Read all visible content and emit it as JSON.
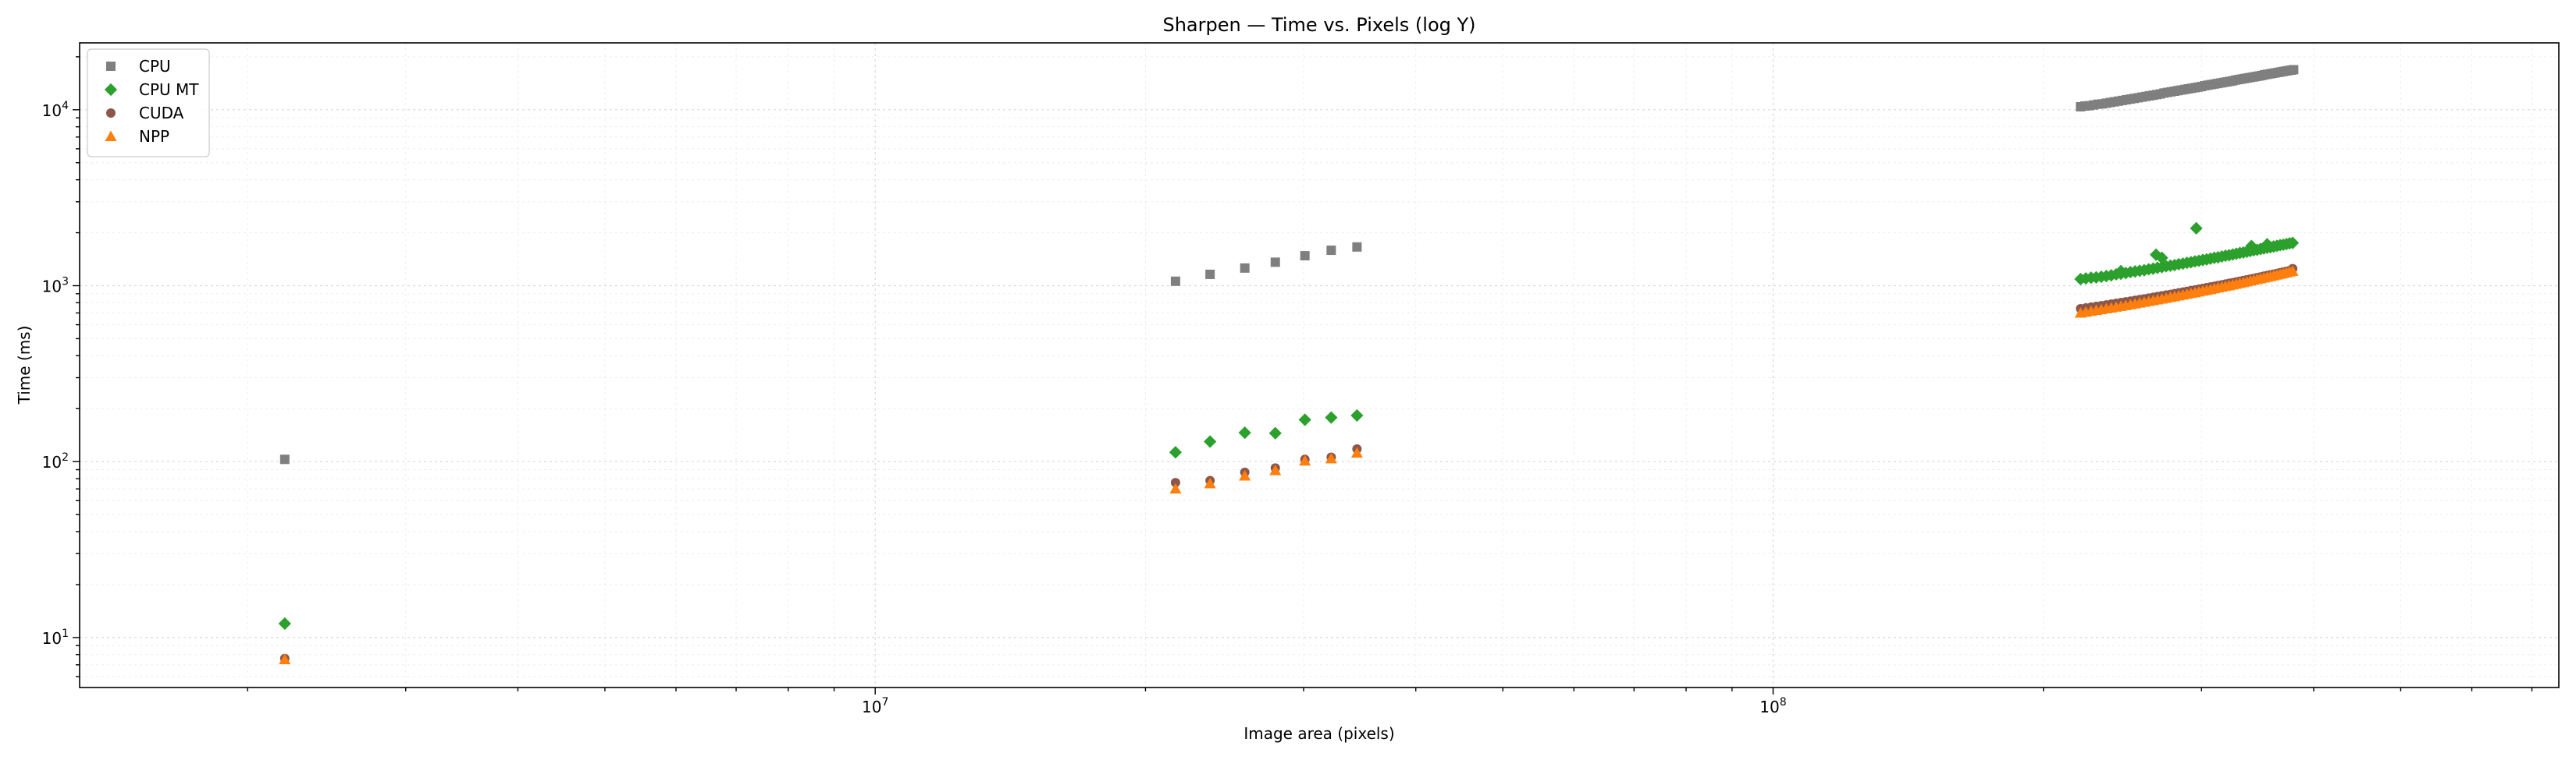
{
  "chart_data": {
    "type": "scatter",
    "title": "Sharpen — Time vs. Pixels (log Y)",
    "xlabel": "Image area (pixels)",
    "ylabel": "Time (ms)",
    "xscale": "log",
    "yscale": "log",
    "xlim": [
      1300000,
      750000000
    ],
    "ylim": [
      5.2,
      24000
    ],
    "grid": true,
    "legend_placement": "upper-left",
    "x_tick_labels": [
      {
        "value": 10000000,
        "base": "10",
        "exp": "7"
      },
      {
        "value": 100000000,
        "base": "10",
        "exp": "8"
      }
    ],
    "y_tick_labels": [
      {
        "value": 10,
        "base": "10",
        "exp": "1"
      },
      {
        "value": 100,
        "base": "10",
        "exp": "2"
      },
      {
        "value": 1000,
        "base": "10",
        "exp": "3"
      },
      {
        "value": 10000,
        "base": "10",
        "exp": "4"
      }
    ],
    "series": [
      {
        "name": "CPU",
        "marker": "square",
        "color": "#7f7f7f",
        "points": [
          [
            2200000,
            103
          ],
          [
            21600000,
            1060
          ],
          [
            23600000,
            1160
          ],
          [
            25800000,
            1260
          ],
          [
            27900000,
            1360
          ],
          [
            30100000,
            1480
          ],
          [
            32200000,
            1590
          ],
          [
            34400000,
            1660
          ],
          [
            220000000,
            10400
          ],
          [
            222500000,
            10500
          ],
          [
            225000000,
            10550
          ],
          [
            227500000,
            10650
          ],
          [
            230000000,
            10750
          ],
          [
            232500000,
            10800
          ],
          [
            235000000,
            10900
          ],
          [
            237500000,
            11000
          ],
          [
            240000000,
            11100
          ],
          [
            242500000,
            11200
          ],
          [
            245000000,
            11300
          ],
          [
            247500000,
            11400
          ],
          [
            250000000,
            11500
          ],
          [
            252500000,
            11600
          ],
          [
            255000000,
            11700
          ],
          [
            257500000,
            11800
          ],
          [
            260000000,
            11900
          ],
          [
            262500000,
            12000
          ],
          [
            265000000,
            12100
          ],
          [
            267500000,
            12200
          ],
          [
            270000000,
            12300
          ],
          [
            272500000,
            12450
          ],
          [
            275000000,
            12550
          ],
          [
            277500000,
            12650
          ],
          [
            280000000,
            12750
          ],
          [
            282500000,
            12850
          ],
          [
            285000000,
            12950
          ],
          [
            287500000,
            13050
          ],
          [
            290000000,
            13150
          ],
          [
            292500000,
            13250
          ],
          [
            295000000,
            13350
          ],
          [
            297500000,
            13450
          ],
          [
            300000000,
            13550
          ],
          [
            302500000,
            13700
          ],
          [
            305000000,
            13800
          ],
          [
            307500000,
            13900
          ],
          [
            310000000,
            14000
          ],
          [
            312500000,
            14100
          ],
          [
            315000000,
            14200
          ],
          [
            317500000,
            14300
          ],
          [
            320000000,
            14400
          ],
          [
            322500000,
            14500
          ],
          [
            325000000,
            14600
          ],
          [
            327500000,
            14750
          ],
          [
            330000000,
            14850
          ],
          [
            332500000,
            14950
          ],
          [
            335000000,
            15050
          ],
          [
            337500000,
            15150
          ],
          [
            340000000,
            15250
          ],
          [
            342500000,
            15350
          ],
          [
            345000000,
            15450
          ],
          [
            347500000,
            15550
          ],
          [
            350000000,
            15650
          ],
          [
            352500000,
            15800
          ],
          [
            355000000,
            15900
          ],
          [
            357500000,
            16000
          ],
          [
            360000000,
            16100
          ],
          [
            362500000,
            16200
          ],
          [
            365000000,
            16300
          ],
          [
            367500000,
            16400
          ],
          [
            370000000,
            16500
          ],
          [
            372500000,
            16600
          ],
          [
            375000000,
            16700
          ],
          [
            377500000,
            16800
          ],
          [
            380000000,
            16900
          ]
        ]
      },
      {
        "name": "CPU MT",
        "marker": "diamond",
        "color": "#2ca02c",
        "points": [
          [
            2200000,
            12
          ],
          [
            21600000,
            113
          ],
          [
            23600000,
            130
          ],
          [
            25800000,
            146
          ],
          [
            27900000,
            145
          ],
          [
            30100000,
            173
          ],
          [
            32200000,
            178
          ],
          [
            34400000,
            183
          ],
          [
            220000000,
            1090
          ],
          [
            223000000,
            1100
          ],
          [
            226000000,
            1110
          ],
          [
            229000000,
            1115
          ],
          [
            232000000,
            1125
          ],
          [
            235000000,
            1135
          ],
          [
            238000000,
            1145
          ],
          [
            241000000,
            1160
          ],
          [
            244000000,
            1170
          ],
          [
            247000000,
            1180
          ],
          [
            250000000,
            1195
          ],
          [
            253000000,
            1205
          ],
          [
            256000000,
            1215
          ],
          [
            259000000,
            1225
          ],
          [
            262000000,
            1240
          ],
          [
            265000000,
            1250
          ],
          [
            268000000,
            1265
          ],
          [
            271000000,
            1275
          ],
          [
            274000000,
            1290
          ],
          [
            277000000,
            1300
          ],
          [
            280000000,
            1310
          ],
          [
            283000000,
            1325
          ],
          [
            286000000,
            1335
          ],
          [
            289000000,
            1350
          ],
          [
            292000000,
            1360
          ],
          [
            295000000,
            1375
          ],
          [
            298000000,
            1385
          ],
          [
            301000000,
            1400
          ],
          [
            304000000,
            1410
          ],
          [
            307000000,
            1425
          ],
          [
            310000000,
            1440
          ],
          [
            313000000,
            1450
          ],
          [
            316000000,
            1465
          ],
          [
            319000000,
            1480
          ],
          [
            322000000,
            1490
          ],
          [
            325000000,
            1505
          ],
          [
            328000000,
            1520
          ],
          [
            331000000,
            1535
          ],
          [
            334000000,
            1545
          ],
          [
            337000000,
            1560
          ],
          [
            340000000,
            1575
          ],
          [
            343000000,
            1590
          ],
          [
            346000000,
            1600
          ],
          [
            349000000,
            1615
          ],
          [
            352000000,
            1630
          ],
          [
            355000000,
            1645
          ],
          [
            358000000,
            1655
          ],
          [
            361000000,
            1670
          ],
          [
            364000000,
            1685
          ],
          [
            367000000,
            1700
          ],
          [
            370000000,
            1710
          ],
          [
            373000000,
            1725
          ],
          [
            376000000,
            1740
          ],
          [
            379000000,
            1750
          ],
          [
            267000000,
            1500
          ],
          [
            271000000,
            1440
          ],
          [
            296000000,
            2120
          ],
          [
            341000000,
            1680
          ],
          [
            355000000,
            1720
          ],
          [
            244000000,
            1210
          ]
        ]
      },
      {
        "name": "CUDA",
        "marker": "circle",
        "color": "#8c564b",
        "points": [
          [
            2200000,
            7.6
          ],
          [
            21600000,
            76
          ],
          [
            23600000,
            78
          ],
          [
            25800000,
            87
          ],
          [
            27900000,
            92
          ],
          [
            30100000,
            103
          ],
          [
            32200000,
            106
          ],
          [
            34400000,
            118
          ],
          [
            220000000,
            740
          ],
          [
            223000000,
            748
          ],
          [
            226000000,
            755
          ],
          [
            229000000,
            763
          ],
          [
            232000000,
            770
          ],
          [
            235000000,
            778
          ],
          [
            238000000,
            786
          ],
          [
            241000000,
            794
          ],
          [
            244000000,
            802
          ],
          [
            247000000,
            810
          ],
          [
            250000000,
            818
          ],
          [
            253000000,
            826
          ],
          [
            256000000,
            834
          ],
          [
            259000000,
            842
          ],
          [
            262000000,
            851
          ],
          [
            265000000,
            859
          ],
          [
            268000000,
            868
          ],
          [
            271000000,
            876
          ],
          [
            274000000,
            885
          ],
          [
            277000000,
            893
          ],
          [
            280000000,
            902
          ],
          [
            283000000,
            911
          ],
          [
            286000000,
            920
          ],
          [
            289000000,
            929
          ],
          [
            292000000,
            938
          ],
          [
            295000000,
            947
          ],
          [
            298000000,
            956
          ],
          [
            301000000,
            965
          ],
          [
            304000000,
            975
          ],
          [
            307000000,
            984
          ],
          [
            310000000,
            993
          ],
          [
            313000000,
            1003
          ],
          [
            316000000,
            1012
          ],
          [
            319000000,
            1022
          ],
          [
            322000000,
            1032
          ],
          [
            325000000,
            1041
          ],
          [
            328000000,
            1051
          ],
          [
            331000000,
            1061
          ],
          [
            334000000,
            1071
          ],
          [
            337000000,
            1081
          ],
          [
            340000000,
            1091
          ],
          [
            343000000,
            1101
          ],
          [
            346000000,
            1112
          ],
          [
            349000000,
            1122
          ],
          [
            352000000,
            1133
          ],
          [
            355000000,
            1143
          ],
          [
            358000000,
            1154
          ],
          [
            361000000,
            1164
          ],
          [
            364000000,
            1175
          ],
          [
            367000000,
            1186
          ],
          [
            370000000,
            1197
          ],
          [
            373000000,
            1208
          ],
          [
            376000000,
            1219
          ],
          [
            379000000,
            1250
          ]
        ]
      },
      {
        "name": "NPP",
        "marker": "triangle",
        "color": "#ff7f0e",
        "points": [
          [
            2200000,
            7.5
          ],
          [
            21600000,
            70
          ],
          [
            23600000,
            75
          ],
          [
            25800000,
            83
          ],
          [
            27900000,
            89
          ],
          [
            30100000,
            101
          ],
          [
            32200000,
            104
          ],
          [
            34400000,
            112
          ],
          [
            220000000,
            700
          ],
          [
            223000000,
            708
          ],
          [
            226000000,
            716
          ],
          [
            229000000,
            724
          ],
          [
            232000000,
            732
          ],
          [
            235000000,
            740
          ],
          [
            238000000,
            748
          ],
          [
            241000000,
            756
          ],
          [
            244000000,
            764
          ],
          [
            247000000,
            772
          ],
          [
            250000000,
            781
          ],
          [
            253000000,
            789
          ],
          [
            256000000,
            798
          ],
          [
            259000000,
            806
          ],
          [
            262000000,
            815
          ],
          [
            265000000,
            823
          ],
          [
            268000000,
            832
          ],
          [
            271000000,
            841
          ],
          [
            274000000,
            850
          ],
          [
            277000000,
            859
          ],
          [
            280000000,
            868
          ],
          [
            283000000,
            877
          ],
          [
            286000000,
            886
          ],
          [
            289000000,
            895
          ],
          [
            292000000,
            905
          ],
          [
            295000000,
            914
          ],
          [
            298000000,
            923
          ],
          [
            301000000,
            933
          ],
          [
            304000000,
            942
          ],
          [
            307000000,
            952
          ],
          [
            310000000,
            962
          ],
          [
            313000000,
            972
          ],
          [
            316000000,
            982
          ],
          [
            319000000,
            992
          ],
          [
            322000000,
            1002
          ],
          [
            325000000,
            1012
          ],
          [
            328000000,
            1022
          ],
          [
            331000000,
            1033
          ],
          [
            334000000,
            1043
          ],
          [
            337000000,
            1054
          ],
          [
            340000000,
            1064
          ],
          [
            343000000,
            1075
          ],
          [
            346000000,
            1086
          ],
          [
            349000000,
            1096
          ],
          [
            352000000,
            1107
          ],
          [
            355000000,
            1118
          ],
          [
            358000000,
            1129
          ],
          [
            361000000,
            1141
          ],
          [
            364000000,
            1152
          ],
          [
            367000000,
            1163
          ],
          [
            370000000,
            1175
          ],
          [
            373000000,
            1186
          ],
          [
            376000000,
            1198
          ],
          [
            379000000,
            1210
          ]
        ]
      }
    ]
  }
}
